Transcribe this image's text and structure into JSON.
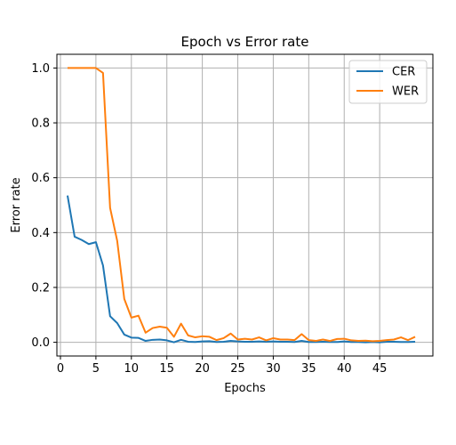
{
  "chart_data": {
    "type": "line",
    "title": "Epoch vs Error rate",
    "xlabel": "Epochs",
    "ylabel": "Error rate",
    "xlim": [
      -0.5,
      52.5
    ],
    "ylim": [
      -0.05,
      1.05
    ],
    "xticks": [
      0,
      5,
      10,
      15,
      20,
      25,
      30,
      35,
      40,
      45
    ],
    "yticks": [
      0.0,
      0.2,
      0.4,
      0.6,
      0.8,
      1.0
    ],
    "xtick_labels": [
      "0",
      "5",
      "10",
      "15",
      "20",
      "25",
      "30",
      "35",
      "40",
      "45"
    ],
    "ytick_labels": [
      "0.0",
      "0.2",
      "0.4",
      "0.6",
      "0.8",
      "1.0"
    ],
    "grid": true,
    "legend_position": "top-right",
    "series": [
      {
        "name": "CER",
        "color": "#1f77b4",
        "x": [
          1,
          2,
          3,
          4,
          5,
          6,
          7,
          8,
          9,
          10,
          11,
          12,
          13,
          14,
          15,
          16,
          17,
          18,
          19,
          20,
          21,
          22,
          23,
          24,
          25,
          26,
          27,
          28,
          29,
          30,
          31,
          32,
          33,
          34,
          35,
          36,
          37,
          38,
          39,
          40,
          41,
          42,
          43,
          44,
          45,
          46,
          47,
          48,
          49,
          50
        ],
        "y": [
          0.535,
          0.385,
          0.373,
          0.358,
          0.365,
          0.28,
          0.095,
          0.07,
          0.028,
          0.017,
          0.016,
          0.005,
          0.009,
          0.01,
          0.007,
          0.0,
          0.009,
          0.002,
          0.001,
          0.003,
          0.004,
          0.001,
          0.002,
          0.005,
          0.003,
          0.002,
          0.002,
          0.003,
          0.002,
          0.003,
          0.002,
          0.002,
          0.001,
          0.005,
          0.001,
          0.001,
          0.002,
          0.001,
          0.001,
          0.003,
          0.001,
          0.001,
          0.0,
          0.001,
          0.0,
          0.002,
          0.002,
          0.001,
          0.001,
          0.002
        ]
      },
      {
        "name": "WER",
        "color": "#ff7f0e",
        "x": [
          1,
          2,
          3,
          4,
          5,
          6,
          7,
          8,
          9,
          10,
          11,
          12,
          13,
          14,
          15,
          16,
          17,
          18,
          19,
          20,
          21,
          22,
          23,
          24,
          25,
          26,
          27,
          28,
          29,
          30,
          31,
          32,
          33,
          34,
          35,
          36,
          37,
          38,
          39,
          40,
          41,
          42,
          43,
          44,
          45,
          46,
          47,
          48,
          49,
          50
        ],
        "y": [
          1.0,
          1.0,
          1.0,
          1.0,
          1.0,
          0.982,
          0.49,
          0.37,
          0.158,
          0.09,
          0.097,
          0.035,
          0.052,
          0.057,
          0.053,
          0.02,
          0.068,
          0.025,
          0.018,
          0.022,
          0.02,
          0.008,
          0.015,
          0.032,
          0.01,
          0.013,
          0.01,
          0.018,
          0.007,
          0.015,
          0.01,
          0.01,
          0.008,
          0.03,
          0.008,
          0.005,
          0.01,
          0.005,
          0.012,
          0.013,
          0.007,
          0.005,
          0.006,
          0.004,
          0.005,
          0.008,
          0.01,
          0.018,
          0.008,
          0.02
        ]
      }
    ]
  }
}
